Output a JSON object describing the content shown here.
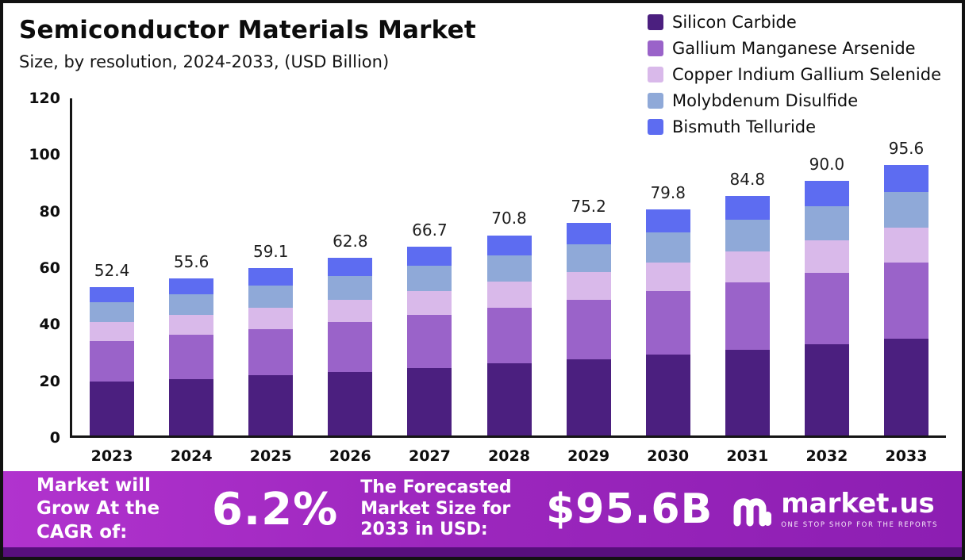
{
  "header": {
    "title": "Semiconductor Materials Market",
    "subtitle": "Size, by resolution, 2024-2033, (USD Billion)"
  },
  "chart_data": {
    "type": "bar",
    "stacked": true,
    "title": "Semiconductor Materials Market",
    "xlabel": "",
    "ylabel": "USD Billion",
    "ylim": [
      0,
      120
    ],
    "yticks": [
      0,
      20,
      40,
      60,
      80,
      100,
      120
    ],
    "grid": false,
    "legend_position": "top-right",
    "categories": [
      "2023",
      "2024",
      "2025",
      "2026",
      "2027",
      "2028",
      "2029",
      "2030",
      "2031",
      "2032",
      "2033"
    ],
    "totals": [
      52.4,
      55.6,
      59.1,
      62.8,
      66.7,
      70.8,
      75.2,
      79.8,
      84.8,
      90.0,
      95.6
    ],
    "series": [
      {
        "name": "Silicon Carbide",
        "color": "#4b1f7f",
        "values": [
          19.0,
          20.0,
          21.2,
          22.5,
          23.9,
          25.4,
          27.0,
          28.6,
          30.4,
          32.3,
          34.3
        ]
      },
      {
        "name": "Gallium Manganese Arsenide",
        "color": "#9a63c9",
        "values": [
          14.5,
          15.5,
          16.5,
          17.5,
          18.6,
          19.8,
          21.0,
          22.3,
          23.7,
          25.1,
          26.7
        ]
      },
      {
        "name": "Copper Indium Gallium Selenide",
        "color": "#d9b9ea",
        "values": [
          6.5,
          7.0,
          7.5,
          8.0,
          8.6,
          9.1,
          9.7,
          10.3,
          11.0,
          11.6,
          12.4
        ]
      },
      {
        "name": "Molybdenum Disulfide",
        "color": "#8fa9d8",
        "values": [
          7.0,
          7.3,
          7.8,
          8.3,
          8.8,
          9.3,
          9.9,
          10.5,
          11.2,
          11.9,
          12.6
        ]
      },
      {
        "name": "Bismuth Telluride",
        "color": "#5d6cf1",
        "values": [
          5.4,
          5.8,
          6.1,
          6.5,
          6.8,
          7.2,
          7.6,
          8.1,
          8.5,
          9.1,
          9.6
        ]
      }
    ]
  },
  "footer": {
    "cagr_label": "Market will Grow At the CAGR of:",
    "cagr_value": "6.2%",
    "forecast_label": "The Forecasted Market Size for 2033 in USD:",
    "forecast_value": "$95.6B",
    "logo_text": "market.us",
    "logo_tagline": "ONE STOP SHOP FOR THE REPORTS"
  }
}
